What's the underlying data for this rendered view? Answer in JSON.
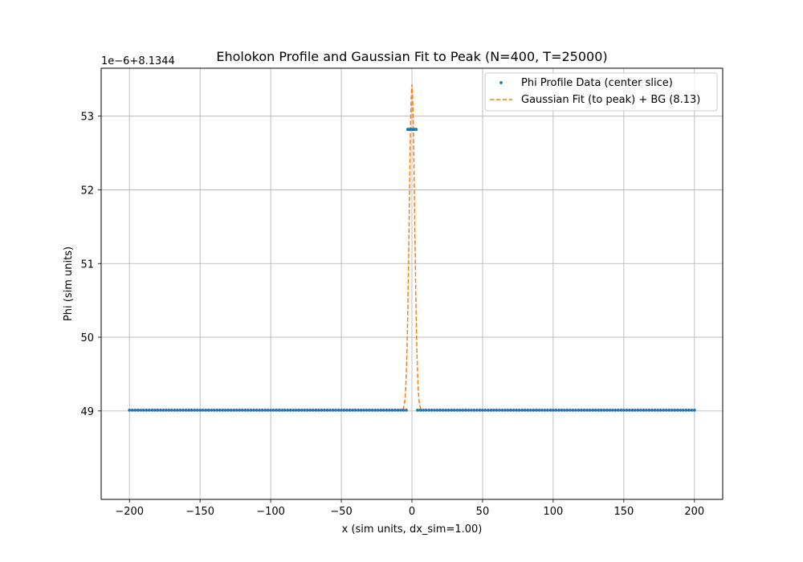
{
  "chart_data": {
    "type": "line",
    "title": "Eholokon Profile and Gaussian Fit to Peak (N=400, T=25000)",
    "xlabel": "x (sim units, dx_sim=1.00)",
    "ylabel": "Phi (sim units)",
    "offset_text": "1e−6+8.1344",
    "xlim": [
      -220,
      220
    ],
    "ylim": [
      47.8,
      53.65
    ],
    "x_ticks": [
      -200,
      -150,
      -100,
      -50,
      0,
      50,
      100,
      150,
      200
    ],
    "x_tick_labels": [
      "−200",
      "−150",
      "−100",
      "−50",
      "0",
      "50",
      "100",
      "150",
      "200"
    ],
    "y_ticks": [
      49,
      50,
      51,
      52,
      53
    ],
    "y_tick_labels": [
      "49",
      "50",
      "51",
      "52",
      "53"
    ],
    "grid": true,
    "legend_position": "top-right",
    "series": [
      {
        "name": "Phi Profile Data (center slice)",
        "kind": "scatter",
        "color": "#1f77b4",
        "segments": [
          {
            "x_from": -200,
            "x_to": -4,
            "step": 2,
            "y": 49.01
          },
          {
            "x_from": -3,
            "x_to": 3,
            "step": 1,
            "y": 52.82
          },
          {
            "x_from": 4,
            "x_to": 200,
            "step": 2,
            "y": 49.01
          }
        ]
      },
      {
        "name": "Gaussian Fit (to peak) + BG (8.13)",
        "kind": "line",
        "style": "dashed",
        "color": "#ff7f0e",
        "gaussian": {
          "amplitude": 4.42,
          "center": 0,
          "sigma": 1.9,
          "background": 49.01
        },
        "x_range": [
          -200,
          200
        ]
      }
    ]
  }
}
